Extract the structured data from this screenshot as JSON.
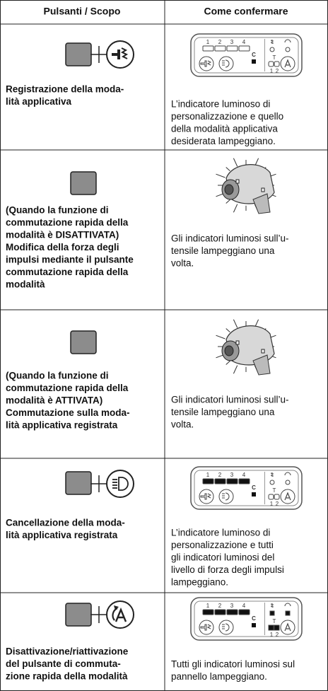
{
  "header": {
    "left": "Pulsanti / Scopo",
    "right": "Come confermare"
  },
  "rows": [
    {
      "left": [
        "Registrazione della moda-",
        "lità applicativa"
      ],
      "right": [
        "L’indicatore luminoso di",
        "personalizzazione e quello",
        "della modalità applicativa",
        "desiderata lampeggiano."
      ]
    },
    {
      "left": [
        "(Quando la funzione di",
        "commutazione rapida della",
        "modalità è DISATTIVATA)",
        "Modifica della forza degli",
        "impulsi mediante il pulsante",
        "commutazione rapida della",
        "modalità"
      ],
      "right": [
        "Gli indicatori luminosi sull’u-",
        "tensile lampeggiano una",
        "volta."
      ]
    },
    {
      "left": [
        "(Quando la funzione di",
        "commutazione rapida della",
        "modalità è ATTIVATA)",
        "Commutazione sulla moda-",
        "lità applicativa registrata"
      ],
      "right": [
        "Gli indicatori luminosi sull’u-",
        "tensile lampeggiano una",
        "volta."
      ]
    },
    {
      "left": [
        "Cancellazione della moda-",
        "lità applicativa registrata"
      ],
      "right": [
        "L’indicatore luminoso di",
        "personalizzazione e tutti",
        "gli indicatori luminosi del",
        "livello di forza degli impulsi",
        "lampeggiano."
      ]
    },
    {
      "left": [
        "Disattivazione/riattivazione",
        "del pulsante di commuta-",
        "zione rapida della modalità"
      ],
      "right": [
        "Tutti gli indicatori luminosi sul",
        "pannello lampeggiano."
      ]
    }
  ],
  "panel_labels": {
    "digits": [
      "1",
      "2",
      "3",
      "4"
    ],
    "c": "C",
    "t": "T",
    "sub": [
      "1",
      "2"
    ]
  }
}
